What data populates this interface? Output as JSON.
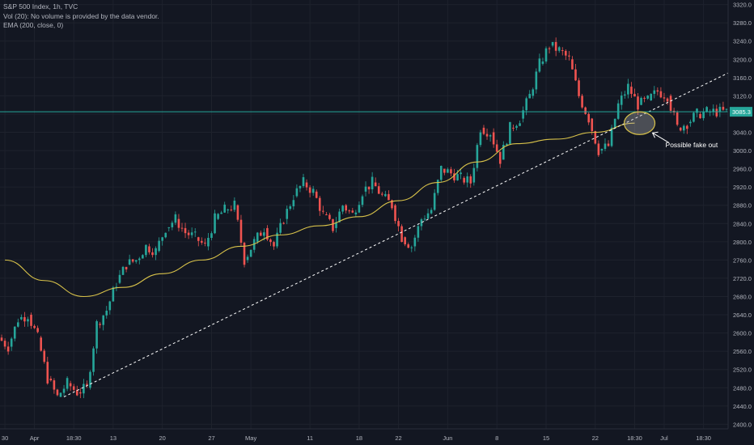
{
  "legend": {
    "line1": "S&P 500 Index, 1h, TVC",
    "line2": "Vol (20): No volume is provided by the data vendor.",
    "line3": "EMA (200, close, 0)"
  },
  "colors": {
    "background": "#131722",
    "up": "#26a69a",
    "down": "#ef5350",
    "ema": "#d8c24a",
    "price_line": "#26a69a",
    "trendline": "#ffffff",
    "annotation": "#ffffff"
  },
  "chart_data": {
    "type": "candlestick",
    "ylim": [
      2390,
      3330
    ],
    "y_ticks": [
      2400,
      2440,
      2480,
      2520,
      2560,
      2600,
      2640,
      2680,
      2720,
      2760,
      2800,
      2840,
      2880,
      2920,
      2960,
      3000,
      3040,
      3080,
      3120,
      3160,
      3200,
      3240,
      3280,
      3320
    ],
    "x_ticks": [
      {
        "label": "30",
        "i": 0
      },
      {
        "label": "Apr",
        "i": 3
      },
      {
        "label": "18:30",
        "i": 7
      },
      {
        "label": "13",
        "i": 11
      },
      {
        "label": "20",
        "i": 16
      },
      {
        "label": "27",
        "i": 21
      },
      {
        "label": "May",
        "i": 25
      },
      {
        "label": "11",
        "i": 31
      },
      {
        "label": "18",
        "i": 36
      },
      {
        "label": "22",
        "i": 40
      },
      {
        "label": "Jun",
        "i": 45
      },
      {
        "label": "8",
        "i": 50
      },
      {
        "label": "15",
        "i": 55
      },
      {
        "label": "22",
        "i": 60
      },
      {
        "label": "18:30",
        "i": 64
      },
      {
        "label": "Jul",
        "i": 67
      },
      {
        "label": "18:30",
        "i": 71
      }
    ],
    "x_count": 74,
    "closes": [
      2590,
      2570,
      2630,
      2640,
      2590,
      2500,
      2460,
      2490,
      2470,
      2480,
      2620,
      2650,
      2710,
      2750,
      2760,
      2790,
      2780,
      2830,
      2850,
      2820,
      2810,
      2790,
      2850,
      2870,
      2880,
      2760,
      2800,
      2830,
      2790,
      2850,
      2900,
      2930,
      2910,
      2860,
      2830,
      2880,
      2860,
      2910,
      2930,
      2900,
      2880,
      2810,
      2790,
      2850,
      2870,
      2960,
      2950,
      2940,
      2930,
      3050,
      3040,
      2980,
      3050,
      3070,
      3120,
      3190,
      3230,
      3220,
      3200,
      3120,
      3070,
      3000,
      3010,
      3100,
      3140,
      3100,
      3110,
      3130,
      3120,
      3050,
      3060,
      3080,
      3085,
      3085
    ],
    "ema": [
      {
        "i": 0,
        "v": 2760
      },
      {
        "i": 4,
        "v": 2715
      },
      {
        "i": 8,
        "v": 2680
      },
      {
        "i": 12,
        "v": 2700
      },
      {
        "i": 16,
        "v": 2730
      },
      {
        "i": 20,
        "v": 2760
      },
      {
        "i": 24,
        "v": 2790
      },
      {
        "i": 28,
        "v": 2815
      },
      {
        "i": 32,
        "v": 2835
      },
      {
        "i": 36,
        "v": 2855
      },
      {
        "i": 40,
        "v": 2890
      },
      {
        "i": 44,
        "v": 2930
      },
      {
        "i": 48,
        "v": 2975
      },
      {
        "i": 52,
        "v": 3015
      },
      {
        "i": 56,
        "v": 3025
      },
      {
        "i": 60,
        "v": 3040
      },
      {
        "i": 64,
        "v": 3060
      }
    ],
    "trendline": {
      "from": {
        "i": 6,
        "v": 2460
      },
      "to": {
        "i": 74,
        "v": 3170
      }
    },
    "price_line": {
      "value": 3085,
      "label": "3085.3"
    },
    "annotation": {
      "text": "Possible fake out",
      "center": {
        "i": 64.5,
        "v": 3060
      }
    }
  }
}
